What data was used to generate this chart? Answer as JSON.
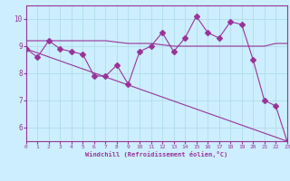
{
  "xlabel": "Windchill (Refroidissement éolien,°C)",
  "bg_color": "#cceeff",
  "line_color": "#993399",
  "grid_color": "#b0dde8",
  "x_min": 0,
  "x_max": 23,
  "y_min": 5.5,
  "y_max": 10.5,
  "yticks": [
    6,
    7,
    8,
    9,
    10
  ],
  "series1_x": [
    0,
    1,
    2,
    3,
    4,
    5,
    6,
    7,
    8,
    9,
    10,
    11,
    12,
    13,
    14,
    15,
    16,
    17,
    18,
    19,
    20,
    21,
    22,
    23
  ],
  "series1_y": [
    8.9,
    8.6,
    9.2,
    8.9,
    8.8,
    8.7,
    7.9,
    7.9,
    8.3,
    7.6,
    8.8,
    9.0,
    9.5,
    8.8,
    9.3,
    10.1,
    9.5,
    9.3,
    9.9,
    9.8,
    8.5,
    7.0,
    6.8,
    5.5
  ],
  "series2_x": [
    0,
    1,
    2,
    3,
    4,
    5,
    6,
    7,
    8,
    9,
    10,
    11,
    12,
    13,
    14,
    15,
    16,
    17,
    18,
    19,
    20,
    21,
    22,
    23
  ],
  "series2_y": [
    9.2,
    9.2,
    9.2,
    9.2,
    9.2,
    9.2,
    9.2,
    9.2,
    9.15,
    9.1,
    9.1,
    9.1,
    9.05,
    9.0,
    9.0,
    9.0,
    9.0,
    9.0,
    9.0,
    9.0,
    9.0,
    9.0,
    9.1,
    9.1
  ],
  "series3_x": [
    0,
    23
  ],
  "series3_y": [
    8.9,
    5.5
  ],
  "markersize": 3
}
